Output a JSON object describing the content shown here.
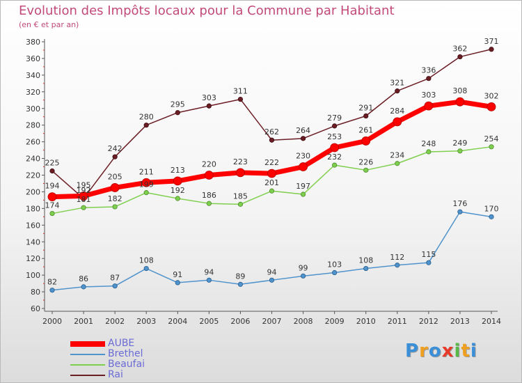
{
  "title": "Evolution des Impôts locaux pour la Commune par Habitant",
  "subtitle": "(en € et par an)",
  "logo": {
    "letters": [
      {
        "ch": "P",
        "color": "#3a8fd8"
      },
      {
        "ch": "r",
        "color": "#f0a020"
      },
      {
        "ch": "o",
        "color": "#3a8fd8"
      },
      {
        "ch": "x",
        "color": "#e83a2a"
      },
      {
        "ch": "i",
        "color": "#58b848"
      },
      {
        "ch": "t",
        "color": "#f0a020"
      },
      {
        "ch": "i",
        "color": "#3a8fd8"
      }
    ]
  },
  "chart_data": {
    "type": "line",
    "title": "Evolution des Impôts locaux pour la Commune par Habitant",
    "subtitle": "(en € et par an)",
    "xlabel": "",
    "ylabel": "",
    "x": [
      "2000",
      "2001",
      "2002",
      "2003",
      "2004",
      "2005",
      "2006",
      "2007",
      "2008",
      "2009",
      "2010",
      "2011",
      "2012",
      "2013",
      "2014"
    ],
    "ylim": [
      60,
      380
    ],
    "yticks": [
      60,
      80,
      100,
      120,
      140,
      160,
      180,
      200,
      220,
      240,
      260,
      280,
      300,
      320,
      340,
      360,
      380
    ],
    "grid": false,
    "legend_position": "bottom-left",
    "series": [
      {
        "name": "AUBE",
        "color": "#ff0000",
        "values": [
          194,
          195,
          205,
          211,
          213,
          220,
          223,
          222,
          230,
          253,
          261,
          284,
          303,
          308,
          302
        ]
      },
      {
        "name": "Brethel",
        "color": "#4f93cc",
        "values": [
          82,
          86,
          87,
          108,
          91,
          94,
          89,
          94,
          99,
          103,
          108,
          112,
          115,
          176,
          170
        ]
      },
      {
        "name": "Beaufai",
        "color": "#7fcf4f",
        "values": [
          174,
          181,
          182,
          199,
          192,
          186,
          185,
          201,
          197,
          232,
          226,
          234,
          248,
          249,
          254
        ]
      },
      {
        "name": "Rai",
        "color": "#6b1d24",
        "values": [
          225,
          192,
          242,
          280,
          295,
          303,
          311,
          262,
          264,
          279,
          291,
          321,
          336,
          362,
          371
        ]
      }
    ]
  }
}
